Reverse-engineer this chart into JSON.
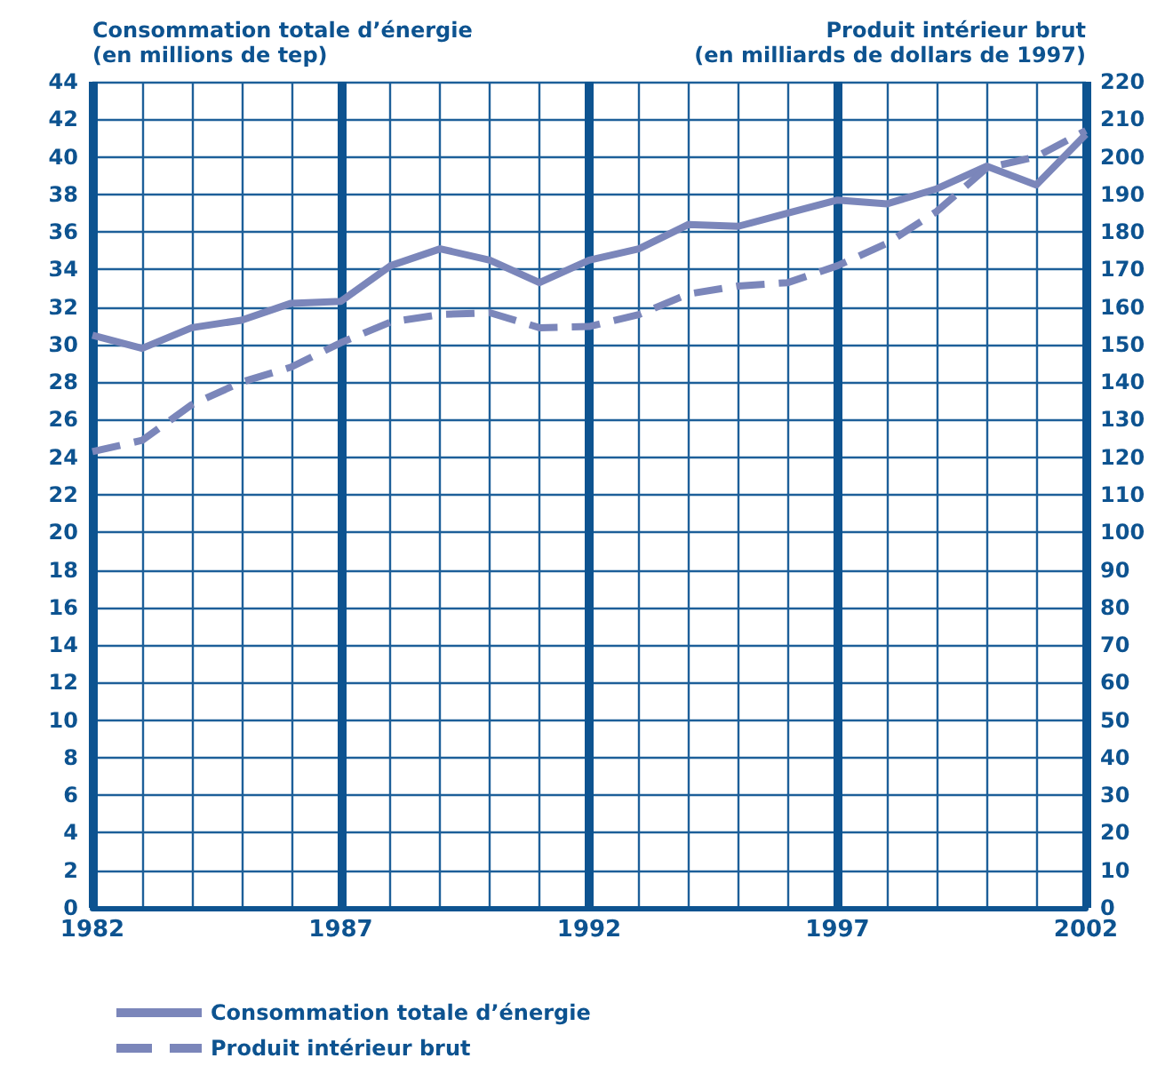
{
  "chart_data": {
    "type": "line",
    "ylabel": "Consommation totale d’énergie\n(en millions de tep)",
    "y2label": "Produit intérieur brut\n(en milliards de dollars de 1997)",
    "x": [
      1982,
      1983,
      1984,
      1985,
      1986,
      1987,
      1988,
      1989,
      1990,
      1991,
      1992,
      1993,
      1994,
      1995,
      1996,
      1997,
      1998,
      1999,
      2000,
      2001,
      2002
    ],
    "series": [
      {
        "name": "Consommation totale d’énergie",
        "color": "#7b86ba",
        "line_style": "solid",
        "values": [
          30.5,
          29.8,
          30.9,
          31.3,
          32.2,
          32.3,
          34.2,
          35.1,
          34.5,
          33.3,
          34.5,
          35.1,
          36.4,
          36.3,
          37.0,
          37.7,
          37.5,
          38.3,
          39.5,
          38.5,
          41.2
        ]
      },
      {
        "name": "Produit intérieur brut",
        "color": "#7b86ba",
        "line_style": "dashed",
        "axis": "y2",
        "values": [
          121.5,
          124.5,
          134,
          140,
          144,
          150.5,
          156,
          158,
          158.5,
          154.5,
          154.8,
          158,
          163.5,
          165.6,
          166.5,
          171,
          177,
          185.5,
          197,
          200,
          207
        ]
      }
    ],
    "xlim": [
      1982,
      2002
    ],
    "xticks": [
      1982,
      {
        "value": 1983,
        "label": null
      },
      {
        "value": 1984,
        "label": null
      },
      {
        "value": 1985,
        "label": null
      },
      {
        "value": 1986,
        "label": null
      },
      1987,
      {
        "value": 1988,
        "label": null
      },
      {
        "value": 1989,
        "label": null
      },
      {
        "value": 1990,
        "label": null
      },
      {
        "value": 1991,
        "label": null
      },
      1992,
      {
        "value": 1993,
        "label": null
      },
      {
        "value": 1994,
        "label": null
      },
      {
        "value": 1995,
        "label": null
      },
      {
        "value": 1996,
        "label": null
      },
      1997,
      {
        "value": 1998,
        "label": null
      },
      {
        "value": 1999,
        "label": null
      },
      {
        "value": 2000,
        "label": null
      },
      {
        "value": 2001,
        "label": null
      },
      2002
    ],
    "ylim": [
      0,
      44
    ],
    "yticks": [
      0,
      2,
      4,
      6,
      8,
      10,
      12,
      14,
      16,
      18,
      20,
      22,
      24,
      26,
      28,
      30,
      32,
      34,
      36,
      38,
      40,
      42,
      44
    ],
    "y2lim": [
      0,
      220
    ],
    "y2ticks": [
      0,
      10,
      20,
      30,
      40,
      50,
      60,
      70,
      80,
      90,
      100,
      110,
      120,
      130,
      140,
      150,
      160,
      170,
      180,
      190,
      200,
      210,
      220
    ],
    "grid": true,
    "legend": "bottom",
    "marker": "none"
  }
}
